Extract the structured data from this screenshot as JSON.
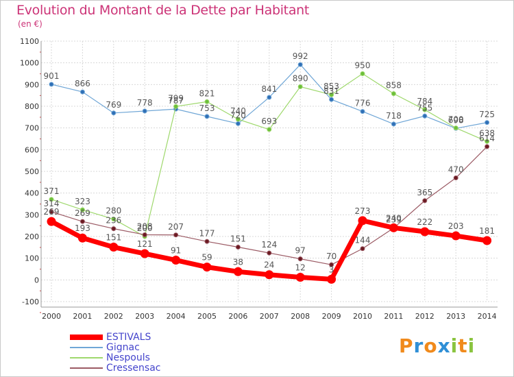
{
  "header": {
    "title": "Evolution du Montant de la Dette par Habitant",
    "unit": "(en €)"
  },
  "chart_data": {
    "type": "line",
    "title": "Evolution du Montant de la Dette par Habitant",
    "ylabel": "(en €)",
    "xlabel": "",
    "ylim": [
      -100,
      1100
    ],
    "yticks": [
      -100,
      0,
      100,
      200,
      300,
      400,
      500,
      600,
      700,
      800,
      900,
      1000,
      1100
    ],
    "x": [
      "2000",
      "2001",
      "2002",
      "2003",
      "2004",
      "2005",
      "2006",
      "2007",
      "2008",
      "2009",
      "2010",
      "2011",
      "2012",
      "2013",
      "2014"
    ],
    "grid": true,
    "legend_position": "bottom-left",
    "series": [
      {
        "name": "Gignac",
        "color": "#6fa6d6",
        "marker": "#2f6fb6",
        "width": 1.2,
        "markerSize": 3,
        "values": [
          901,
          866,
          769,
          778,
          787,
          753,
          720,
          841,
          992,
          831,
          776,
          718,
          755,
          698,
          725
        ]
      },
      {
        "name": "Nespouls",
        "color": "#9ed86c",
        "marker": "#6cbf3a",
        "width": 1.2,
        "markerSize": 3,
        "values": [
          371,
          323,
          280,
          200,
          799,
          821,
          740,
          693,
          890,
          853,
          950,
          858,
          784,
          700,
          638
        ]
      },
      {
        "name": "Cressensac",
        "color": "#9b5a64",
        "marker": "#6b1a22",
        "width": 1.2,
        "markerSize": 3,
        "values": [
          314,
          269,
          236,
          208,
          207,
          177,
          151,
          124,
          97,
          70,
          144,
          239,
          365,
          470,
          614
        ]
      },
      {
        "name": "ESTIVALS",
        "color": "#ff0000",
        "marker": "#ff0000",
        "width": 7,
        "markerSize": 6,
        "values": [
          269,
          193,
          151,
          121,
          91,
          59,
          38,
          24,
          12,
          3,
          273,
          240,
          222,
          203,
          181
        ]
      }
    ]
  },
  "legend": [
    {
      "name": "ESTIVALS",
      "color": "#ff0000",
      "thickness": 7
    },
    {
      "name": "Gignac",
      "color": "#6fa6d6",
      "thickness": 2
    },
    {
      "name": "Nespouls",
      "color": "#9ed86c",
      "thickness": 2
    },
    {
      "name": "Cressensac",
      "color": "#9b5a64",
      "thickness": 2
    }
  ],
  "logo": {
    "text": "Proxiti"
  }
}
